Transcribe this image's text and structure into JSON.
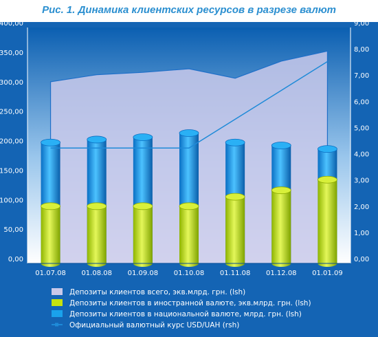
{
  "title": "Рис. 1.   Динамика клиентских ресурсов в разрезе валют",
  "colors": {
    "frame": "#1464b4",
    "plot_bg": "#ffffff",
    "plot_grad_top": "#0b5fb1",
    "total_area": "#c9c9ea",
    "foreign_bar": "#c6e20d",
    "national_bar": "#1aa2ec",
    "rate_line": "#1e8ad8"
  },
  "chart_data": {
    "type": "bar",
    "categories": [
      "01.07.08",
      "01.08.08",
      "01.09.08",
      "01.10.08",
      "01.11.08",
      "01.12.08",
      "01.01.09"
    ],
    "series": [
      {
        "name": "Депозиты клиентов всего, экв.млрд. грн. (lsh)",
        "kind": "area",
        "axis": "left",
        "values": [
          308,
          320,
          324,
          330,
          314,
          343,
          360
        ]
      },
      {
        "name": "Депозиты клиентов в иностранной валюте, экв.млрд. грн. (lsh)",
        "kind": "bar",
        "axis": "left",
        "values": [
          97,
          97,
          97,
          97,
          113,
          124,
          142
        ]
      },
      {
        "name": "Депозиты клиентов в национальной валюте, млрд. грн. (lsh)",
        "kind": "bar",
        "axis": "left",
        "values": [
          205,
          210,
          214,
          221,
          205,
          200,
          194
        ]
      },
      {
        "name": "Официальный валютный курс USD/UAH (rsh)",
        "kind": "line",
        "axis": "right",
        "values": [
          4.4,
          4.4,
          4.4,
          4.4,
          5.5,
          6.6,
          7.7
        ]
      }
    ],
    "ylim": [
      0,
      400
    ],
    "y2lim": [
      0,
      9
    ],
    "y_ticks": [
      "0,00",
      "50,00",
      "100,00",
      "150,00",
      "200,00",
      "250,00",
      "300,00",
      "350,00",
      "400,00"
    ],
    "y2_ticks": [
      "0,00",
      "1,00",
      "2,00",
      "3,00",
      "4,00",
      "5,00",
      "6,00",
      "7,00",
      "8,00",
      "9,00"
    ],
    "legend_position": "bottom"
  }
}
